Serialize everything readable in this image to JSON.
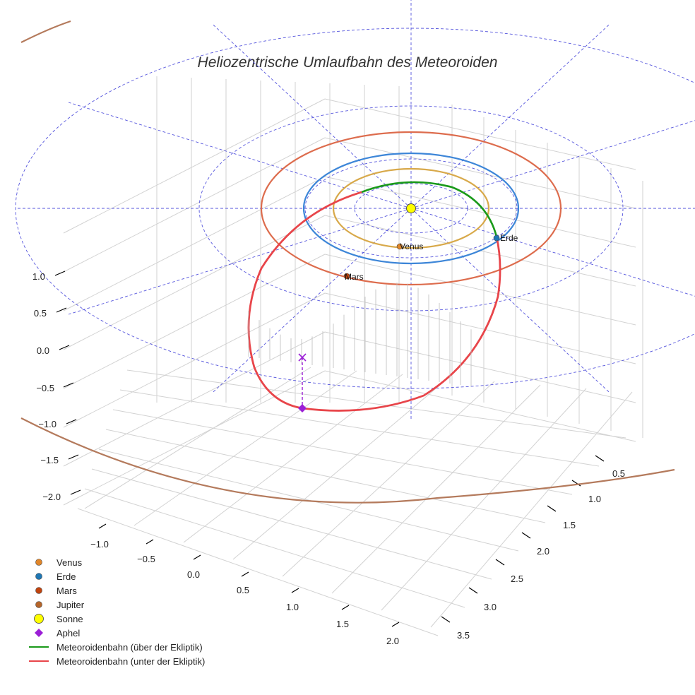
{
  "chart_data": {
    "type": "3d-orbit",
    "title": "Heliozentrische Umlaufbahn des Meteoroiden",
    "axes": {
      "x": {
        "ticks": [
          "−1.0",
          "−0.5",
          "0.0",
          "0.5",
          "1.0",
          "1.5",
          "2.0"
        ]
      },
      "y": {
        "ticks": [
          "0.5",
          "1.0",
          "1.5",
          "2.0",
          "2.5",
          "3.0",
          "3.5"
        ]
      },
      "z": {
        "ticks": [
          "1.0",
          "0.5",
          "0.0",
          "−0.5",
          "−1.0",
          "−1.5",
          "−2.0"
        ]
      }
    },
    "bodies": [
      {
        "name": "Venus",
        "label": "Venus",
        "color": "#e0862a",
        "orbit_color": "#d8a94a",
        "orbit_radius_au": 0.72
      },
      {
        "name": "Erde",
        "label": "Erde",
        "color": "#1f77b4",
        "orbit_color": "#3d86d8",
        "orbit_radius_au": 1.0
      },
      {
        "name": "Mars",
        "label": "Mars",
        "color": "#c1440e",
        "orbit_color": "#dd6c4d",
        "orbit_radius_au": 1.52
      },
      {
        "name": "Jupiter",
        "color": "#b5652a",
        "orbit_color": "#b47a5c",
        "orbit_radius_au": 5.2
      },
      {
        "name": "Sonne",
        "color": "#ffff00"
      }
    ],
    "meteoroid": {
      "aphel_label": "Aphel",
      "series": [
        {
          "name": "Meteoroidenbahn (über der Ekliptik)",
          "color": "#1a9a1a"
        },
        {
          "name": "Meteoroidenbahn (unter der Ekliptik)",
          "color": "#e8454a"
        }
      ]
    },
    "ecliptic_grid_color": "#5555dd"
  },
  "legend": [
    {
      "label": "Venus",
      "marker": "circle",
      "color": "#e0862a"
    },
    {
      "label": "Erde",
      "marker": "circle",
      "color": "#1f77b4"
    },
    {
      "label": "Mars",
      "marker": "circle",
      "color": "#c1440e"
    },
    {
      "label": "Jupiter",
      "marker": "circle",
      "color": "#b5652a"
    },
    {
      "label": "Sonne",
      "marker": "circle-large",
      "color": "#ffff00"
    },
    {
      "label": "Aphel",
      "marker": "diamond",
      "color": "#9b1fd6"
    },
    {
      "label": "Meteoroidenbahn (über der Ekliptik)",
      "marker": "line",
      "color": "#1a9a1a"
    },
    {
      "label": "Meteoroidenbahn (unter der Ekliptik)",
      "marker": "line",
      "color": "#e8454a"
    }
  ]
}
